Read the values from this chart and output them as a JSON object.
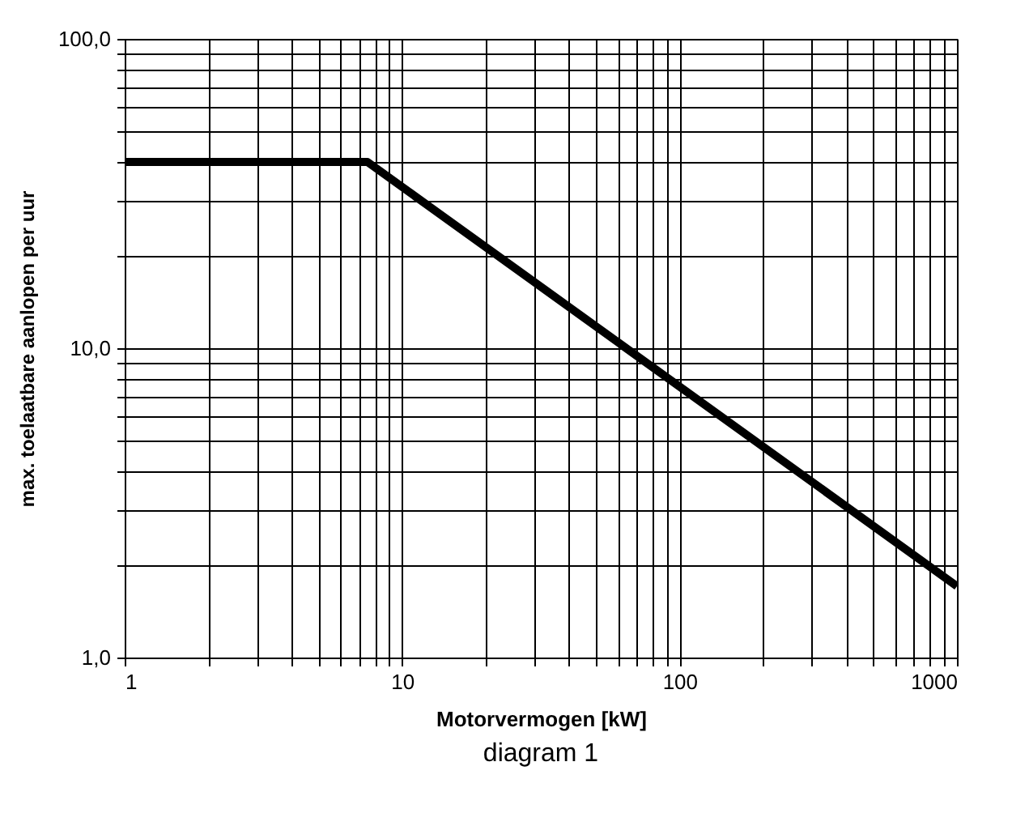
{
  "chart_data": {
    "type": "line",
    "xlabel": "Motorvermogen [kW]",
    "ylabel": "max. toelaatbare aanlopen per uur",
    "annotations": [
      "diagram 1"
    ],
    "x": [
      1,
      7.5,
      1000
    ],
    "series": [
      {
        "color": "#000000",
        "values": [
          40,
          40,
          1.7
        ]
      }
    ],
    "log": "xy",
    "grid": true,
    "marker": "none",
    "line_style": "solid",
    "xlim": [
      1,
      1000
    ],
    "ylim": [
      1,
      100
    ],
    "xticks": [
      1,
      {
        "value": 2,
        "label": null
      },
      {
        "value": 3,
        "label": null
      },
      {
        "value": 4,
        "label": null
      },
      {
        "value": 5,
        "label": null
      },
      {
        "value": 6,
        "label": null
      },
      {
        "value": 7,
        "label": null
      },
      {
        "value": 8,
        "label": null
      },
      {
        "value": 9,
        "label": null
      },
      10,
      {
        "value": 20,
        "label": null
      },
      {
        "value": 30,
        "label": null
      },
      {
        "value": 40,
        "label": null
      },
      {
        "value": 50,
        "label": null
      },
      {
        "value": 60,
        "label": null
      },
      {
        "value": 70,
        "label": null
      },
      {
        "value": 80,
        "label": null
      },
      {
        "value": 90,
        "label": null
      },
      100,
      {
        "value": 200,
        "label": null
      },
      {
        "value": 300,
        "label": null
      },
      {
        "value": 400,
        "label": null
      },
      {
        "value": 500,
        "label": null
      },
      {
        "value": 600,
        "label": null
      },
      {
        "value": 700,
        "label": null
      },
      {
        "value": 800,
        "label": null
      },
      {
        "value": 900,
        "label": null
      },
      1000
    ],
    "yticks": [
      {
        "value": 1,
        "label": "1,0"
      },
      {
        "value": 2,
        "label": null
      },
      {
        "value": 3,
        "label": null
      },
      {
        "value": 4,
        "label": null
      },
      {
        "value": 5,
        "label": null
      },
      {
        "value": 6,
        "label": null
      },
      {
        "value": 7,
        "label": null
      },
      {
        "value": 8,
        "label": null
      },
      {
        "value": 9,
        "label": null
      },
      {
        "value": 10,
        "label": "10,0"
      },
      {
        "value": 20,
        "label": null
      },
      {
        "value": 30,
        "label": null
      },
      {
        "value": 40,
        "label": null
      },
      {
        "value": 50,
        "label": null
      },
      {
        "value": 60,
        "label": null
      },
      {
        "value": 70,
        "label": null
      },
      {
        "value": 80,
        "label": null
      },
      {
        "value": 90,
        "label": null
      },
      {
        "value": 100,
        "label": "100,0"
      }
    ]
  }
}
